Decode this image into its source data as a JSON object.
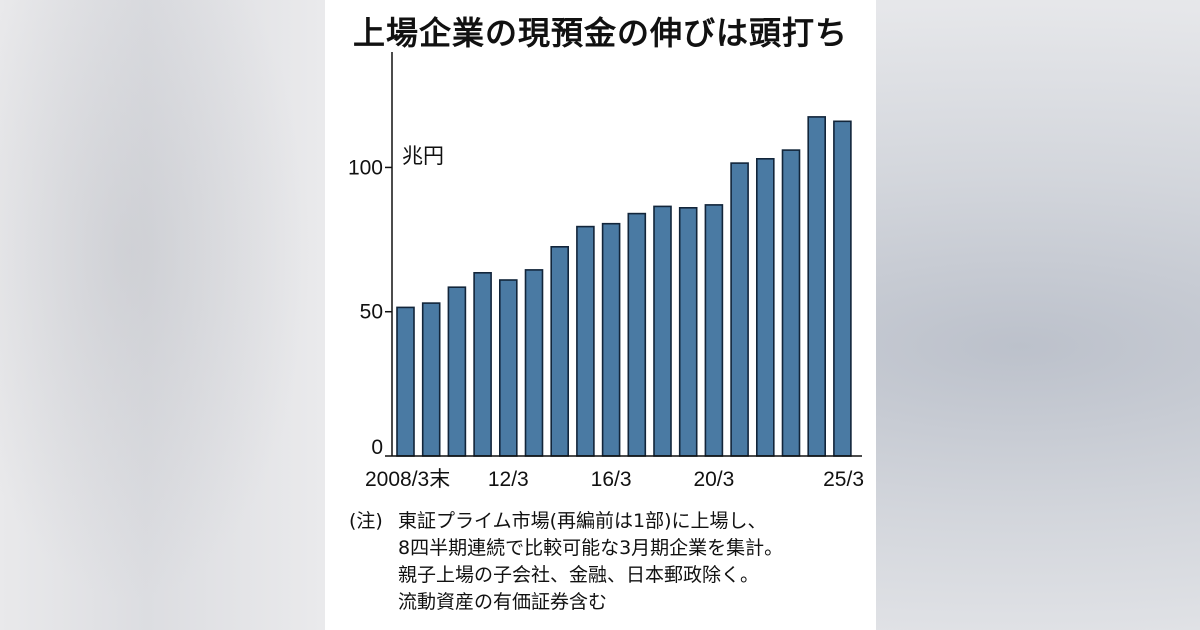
{
  "title": "上場企業の現預金の伸びは頭打ち",
  "colors": {
    "bar_fill": "#4a7aa3",
    "bar_stroke": "#12253a",
    "axis": "#111111",
    "card_background": "#ffffff"
  },
  "notes": {
    "prefix": "(注)",
    "lines": [
      "東証プライム市場(再編前は1部)に上場し、",
      "8四半期連続で比較可能な3月期企業を集計。",
      "親子上場の子会社、金融、日本郵政除く。",
      "流動資産の有価証券含む"
    ]
  },
  "chart_data": {
    "type": "bar",
    "title": "上場企業の現預金の伸びは頭打ち",
    "ylabel": "兆円",
    "xlabel": "",
    "categories": [
      "2008/3",
      "2009/3",
      "2010/3",
      "2011/3",
      "2012/3",
      "2013/3",
      "2014/3",
      "2015/3",
      "2016/3",
      "2017/3",
      "2018/3",
      "2019/3",
      "2020/3",
      "2021/3",
      "2022/3",
      "2023/3",
      "2024/3",
      "2025/3"
    ],
    "values": [
      51.5,
      53,
      58.5,
      63.5,
      61,
      64.5,
      72.5,
      79.5,
      80.5,
      84,
      86.5,
      86,
      87,
      101.5,
      103,
      106,
      117.5,
      116
    ],
    "ylim": [
      0,
      140
    ],
    "yticks": [
      0,
      50,
      100
    ],
    "xtick_labels": [
      {
        "category": "2008/3",
        "label": "2008/3末"
      },
      {
        "category": "2012/3",
        "label": "12/3"
      },
      {
        "category": "2016/3",
        "label": "16/3"
      },
      {
        "category": "2020/3",
        "label": "20/3"
      },
      {
        "category": "2025/3",
        "label": "25/3"
      }
    ],
    "grid": false,
    "legend": "none"
  }
}
